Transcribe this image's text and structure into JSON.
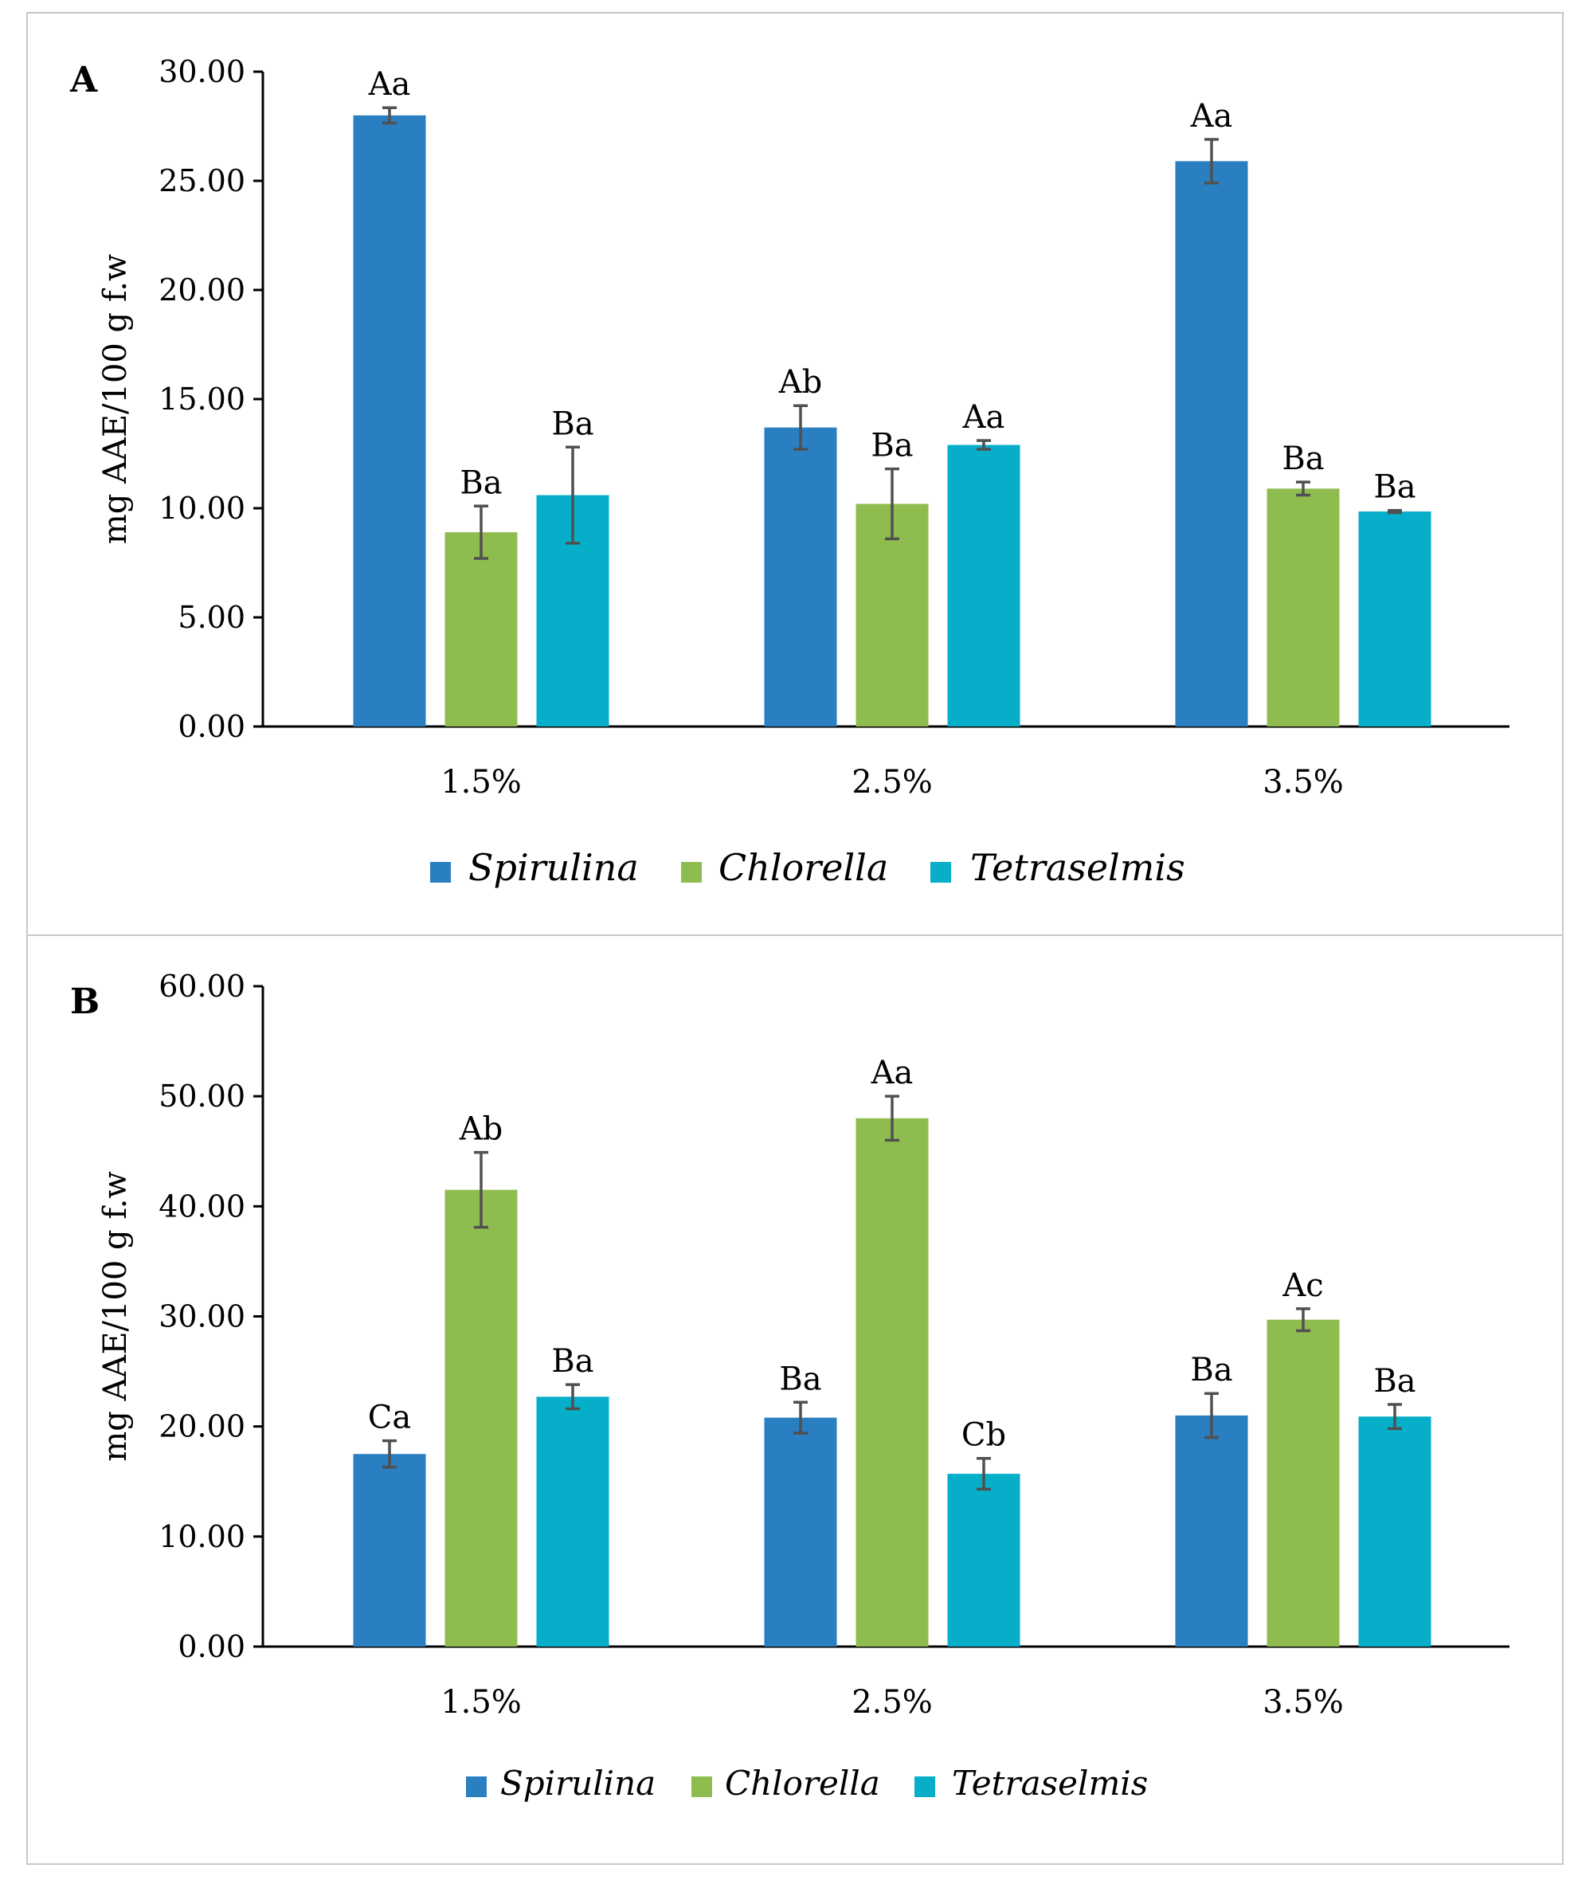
{
  "chart_data": [
    {
      "type": "bar",
      "panel_label": "A",
      "title": "",
      "xlabel": "",
      "ylabel": "mg AAE/100 g f.w",
      "ylim": [
        0,
        30
      ],
      "yticks": [
        "0.00",
        "5.00",
        "10.00",
        "15.00",
        "20.00",
        "25.00",
        "30.00"
      ],
      "ytick_values": [
        0,
        5,
        10,
        15,
        20,
        25,
        30
      ],
      "categories": [
        "1.5%",
        "2.5%",
        "3.5%"
      ],
      "series": [
        {
          "name": "Spirulina",
          "color": "#2a7fc1",
          "values": [
            28.0,
            13.7,
            25.9
          ],
          "errors": [
            0.35,
            1.0,
            1.0
          ],
          "labels": [
            "Aa",
            "Ab",
            "Aa"
          ]
        },
        {
          "name": "Chlorella",
          "color": "#8fbc4e",
          "values": [
            8.9,
            10.2,
            10.9
          ],
          "errors": [
            1.2,
            1.6,
            0.3
          ],
          "labels": [
            "Ba",
            "Ba",
            "Ba"
          ]
        },
        {
          "name": "Tetraselmis",
          "color": "#06aec9",
          "values": [
            10.6,
            12.9,
            9.85
          ],
          "errors": [
            2.2,
            0.2,
            0.05
          ],
          "labels": [
            "Ba",
            "Aa",
            "Ba"
          ]
        }
      ],
      "grid": false,
      "legend": "bottom"
    },
    {
      "type": "bar",
      "panel_label": "B",
      "title": "",
      "xlabel": "",
      "ylabel": "mg AAE/100 g f.w",
      "ylim": [
        0,
        60
      ],
      "yticks": [
        "0.00",
        "10.00",
        "20.00",
        "30.00",
        "40.00",
        "50.00",
        "60.00"
      ],
      "ytick_values": [
        0,
        10,
        20,
        30,
        40,
        50,
        60
      ],
      "categories": [
        "1.5%",
        "2.5%",
        "3.5%"
      ],
      "series": [
        {
          "name": "Spirulina",
          "color": "#2a7fc1",
          "values": [
            17.5,
            20.8,
            21.0
          ],
          "errors": [
            1.2,
            1.4,
            2.0
          ],
          "labels": [
            "Ca",
            "Ba",
            "Ba"
          ]
        },
        {
          "name": "Chlorella",
          "color": "#8fbc4e",
          "values": [
            41.5,
            48.0,
            29.7
          ],
          "errors": [
            3.4,
            2.0,
            1.0
          ],
          "labels": [
            "Ab",
            "Aa",
            "Ac"
          ]
        },
        {
          "name": "Tetraselmis",
          "color": "#06aec9",
          "values": [
            22.7,
            15.7,
            20.9
          ],
          "errors": [
            1.1,
            1.4,
            1.1
          ],
          "labels": [
            "Ba",
            "Cb",
            "Ba"
          ]
        }
      ],
      "grid": false,
      "legend": "bottom"
    }
  ]
}
